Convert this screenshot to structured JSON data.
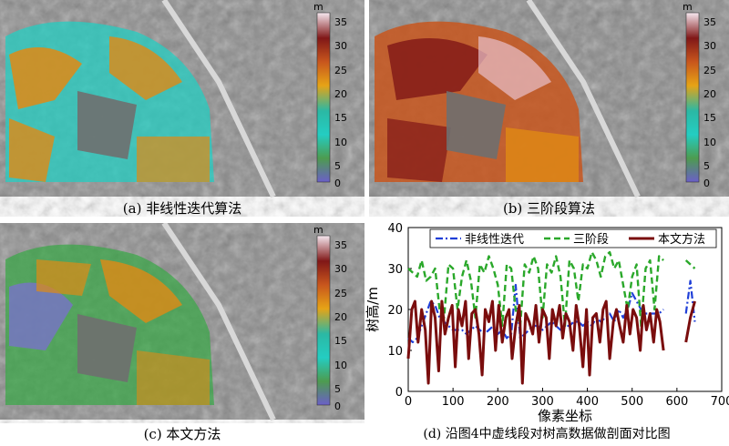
{
  "panels": [
    {
      "caption": "(a) 非线性迭代算法",
      "unit": "m",
      "ticks": [
        "35",
        "30",
        "25",
        "20",
        "15",
        "10",
        "5",
        "0"
      ]
    },
    {
      "caption": "(b) 三阶段算法",
      "unit": "m",
      "ticks": [
        "35",
        "30",
        "25",
        "20",
        "15",
        "10",
        "5",
        "0"
      ]
    },
    {
      "caption": "(c) 本文方法",
      "unit": "m",
      "ticks": [
        "35",
        "30",
        "25",
        "20",
        "15",
        "10",
        "5",
        "0"
      ]
    },
    {
      "caption": "(d) 沿图4中虚线段对树高数据做剖面对比图"
    }
  ],
  "colors": {
    "purple": "#7b6fd0",
    "teal": "#22d4c8",
    "green": "#36a844",
    "orange": "#e08a14",
    "darkred": "#8b1a1a",
    "pink": "#e8c0cc",
    "series_blue": "#1f3fd8",
    "series_green": "#2aa82a",
    "series_red": "#7a0d0d"
  },
  "chart_data": {
    "type": "line",
    "xlabel": "像素坐标",
    "ylabel": "树高/m",
    "xlim": [
      0,
      700
    ],
    "ylim": [
      0,
      40
    ],
    "xticks": [
      "0",
      "100",
      "200",
      "300",
      "400",
      "500",
      "600",
      "700"
    ],
    "yticks": [
      "0",
      "10",
      "20",
      "30",
      "40"
    ],
    "legend_position": "top",
    "series": [
      {
        "name": "非线性迭代",
        "style": "dash-dot",
        "x": [
          0,
          10,
          20,
          30,
          40,
          50,
          60,
          70,
          80,
          90,
          100,
          110,
          120,
          130,
          140,
          150,
          160,
          170,
          180,
          190,
          200,
          210,
          220,
          230,
          240,
          250,
          260,
          270,
          280,
          290,
          300,
          310,
          320,
          330,
          340,
          350,
          360,
          370,
          380,
          390,
          400,
          410,
          420,
          430,
          440,
          450,
          460,
          470,
          480,
          490,
          500,
          510,
          520,
          530,
          540,
          550,
          560,
          570,
          620,
          630,
          640
        ],
        "y": [
          13,
          12,
          13,
          16,
          19,
          22,
          21,
          18,
          17,
          16,
          15,
          15,
          15,
          14,
          15,
          16,
          15,
          14,
          15,
          16,
          14,
          15,
          13,
          14,
          26,
          13,
          14,
          15,
          16,
          16,
          15,
          16,
          17,
          16,
          15,
          16,
          16,
          17,
          17,
          16,
          17,
          16,
          18,
          17,
          18,
          19,
          17,
          20,
          18,
          20,
          24,
          22,
          20,
          19,
          19,
          19,
          19,
          20,
          19,
          27,
          17
        ]
      },
      {
        "name": "三阶段",
        "style": "dashed",
        "x": [
          0,
          10,
          20,
          30,
          40,
          50,
          60,
          70,
          80,
          90,
          100,
          110,
          120,
          130,
          140,
          150,
          160,
          170,
          180,
          190,
          200,
          210,
          220,
          230,
          240,
          250,
          260,
          270,
          280,
          290,
          300,
          310,
          320,
          330,
          340,
          350,
          360,
          370,
          380,
          390,
          400,
          410,
          420,
          430,
          440,
          450,
          460,
          470,
          480,
          490,
          500,
          510,
          520,
          530,
          540,
          550,
          560,
          570,
          620,
          630,
          640
        ],
        "y": [
          30,
          29,
          28,
          32,
          27,
          28,
          30,
          20,
          18,
          31,
          30,
          20,
          28,
          32,
          27,
          18,
          31,
          29,
          33,
          30,
          26,
          16,
          31,
          30,
          20,
          16,
          31,
          29,
          33,
          30,
          18,
          31,
          29,
          33,
          28,
          16,
          32,
          30,
          22,
          31,
          30,
          34,
          32,
          28,
          33,
          34,
          30,
          32,
          26,
          20,
          28,
          31,
          16,
          30,
          32,
          20,
          33,
          32,
          32,
          31,
          30
        ]
      },
      {
        "name": "本文方法",
        "style": "solid",
        "x": [
          0,
          8,
          15,
          22,
          30,
          38,
          45,
          52,
          60,
          68,
          75,
          82,
          90,
          98,
          105,
          112,
          120,
          128,
          135,
          142,
          150,
          158,
          165,
          172,
          180,
          188,
          195,
          202,
          210,
          218,
          225,
          232,
          240,
          248,
          255,
          262,
          270,
          278,
          285,
          292,
          300,
          308,
          315,
          322,
          330,
          338,
          345,
          352,
          360,
          368,
          375,
          382,
          390,
          398,
          405,
          412,
          420,
          428,
          435,
          442,
          450,
          458,
          465,
          472,
          480,
          488,
          495,
          502,
          510,
          518,
          525,
          532,
          540,
          548,
          555,
          562,
          570,
          620,
          630,
          640
        ],
        "y": [
          8,
          20,
          22,
          12,
          20,
          15,
          2,
          22,
          18,
          5,
          22,
          14,
          18,
          21,
          6,
          20,
          16,
          22,
          8,
          19,
          20,
          14,
          4,
          20,
          17,
          22,
          10,
          21,
          12,
          18,
          20,
          8,
          16,
          21,
          2,
          19,
          17,
          14,
          21,
          12,
          20,
          18,
          8,
          20,
          16,
          21,
          13,
          19,
          17,
          10,
          21,
          16,
          6,
          20,
          4,
          18,
          19,
          12,
          20,
          22,
          8,
          17,
          20,
          16,
          12,
          21,
          14,
          20,
          18,
          10,
          21,
          15,
          19,
          12,
          20,
          17,
          10,
          12,
          18,
          22
        ]
      }
    ]
  }
}
